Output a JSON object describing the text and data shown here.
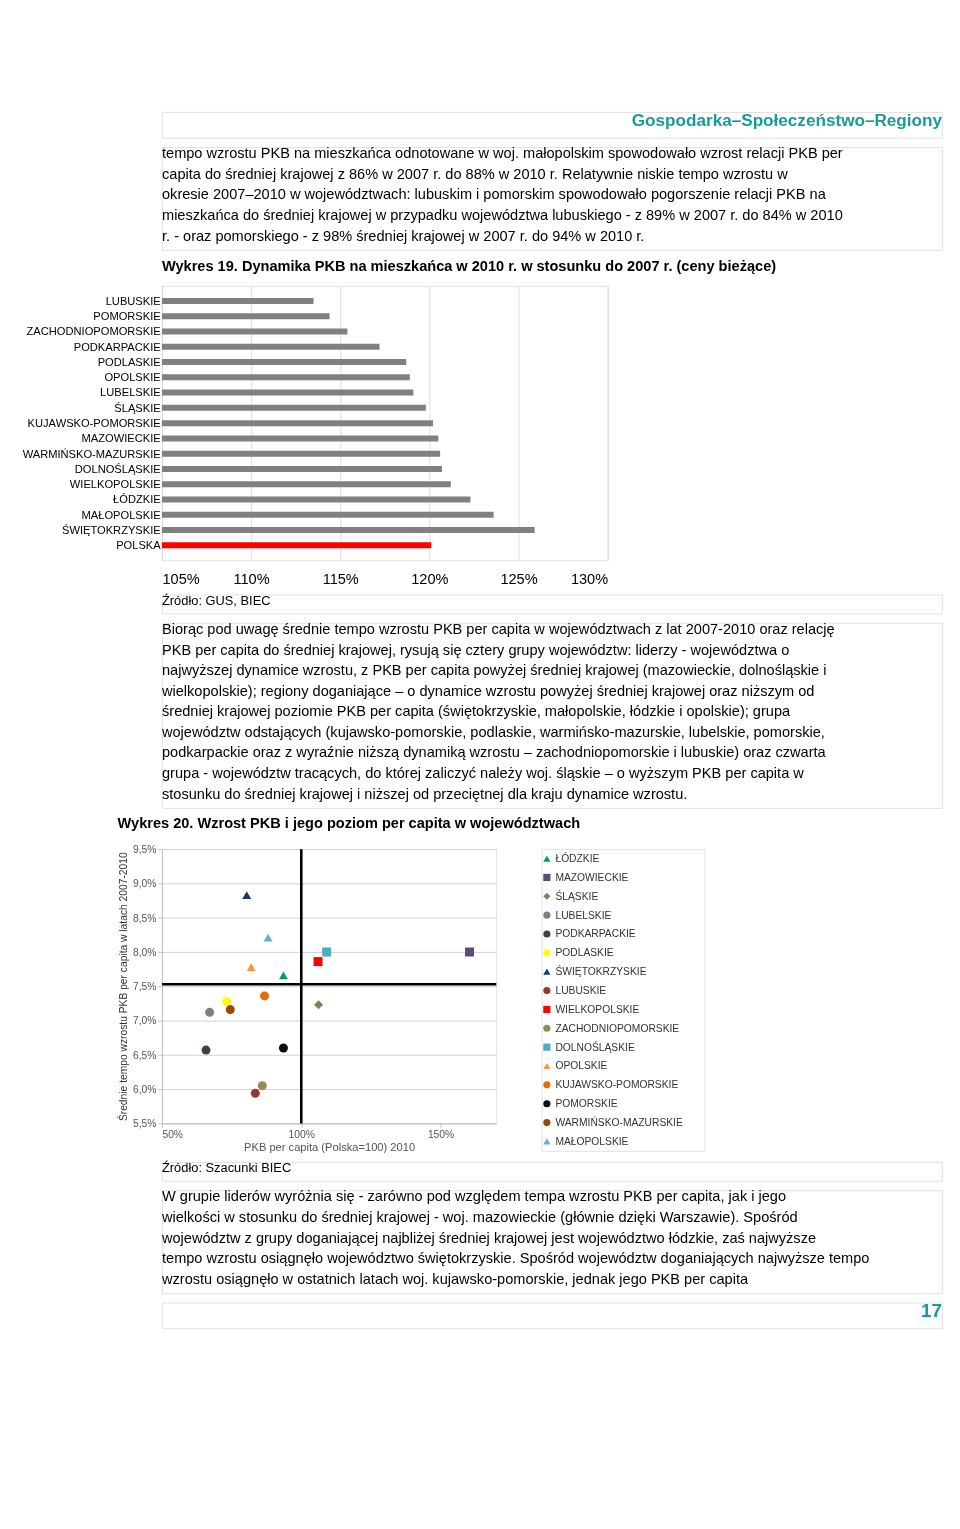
{
  "chart_data": [
    {
      "type": "bar",
      "orientation": "horizontal",
      "title": "Wykres 19.  Dynamika  PKB  na  mieszkańca w 2010 r. w stosunku do 2007 r. (ceny bieżące)",
      "categories": [
        "LUBUSKIE",
        "POMORSKIE",
        "ZACHODNIOPOMORSKIE",
        "PODKARPACKIE",
        "PODLASKIE",
        "OPOLSKIE",
        "LUBELSKIE",
        "ŚLĄSKIE",
        "KUJAWSKO-POMORSKIE",
        "MAZOWIECKIE",
        "WARMIŃSKO-MAZURSKIE",
        "DOLNOŚLĄSKIE",
        "WIELKOPOLSKIE",
        "ŁÓDZKIE",
        "MAŁOPOLSKIE",
        "ŚWIĘTOKRZYSKIE",
        "POLSKA"
      ],
      "values": [
        113.5,
        114.4,
        115.4,
        117.2,
        118.7,
        118.9,
        119.1,
        119.8,
        120.2,
        120.5,
        120.6,
        120.7,
        121.2,
        122.3,
        123.6,
        125.9,
        120.1
      ],
      "colors": [
        "#808080",
        "#808080",
        "#808080",
        "#808080",
        "#808080",
        "#808080",
        "#808080",
        "#808080",
        "#808080",
        "#808080",
        "#808080",
        "#808080",
        "#808080",
        "#808080",
        "#808080",
        "#808080",
        "#ff0000"
      ],
      "xlim": [
        105,
        130
      ],
      "xticks": [
        {
          "value": 105,
          "label": "105%"
        },
        {
          "value": 110,
          "label": "110%"
        },
        {
          "value": 115,
          "label": "115%"
        },
        {
          "value": 120,
          "label": "120%"
        },
        {
          "value": 125,
          "label": "125%"
        },
        {
          "value": 130,
          "label": "130%"
        }
      ],
      "grid": "x",
      "legend": false,
      "annotations": [
        "Gospodarka–Społeczeństwo–Regiony",
        "tempo wzrostu PKB na mieszkańca odnotowane w woj. małopolskim  spowodowało wzrost relacji PKB per capita do średniej krajowej z 86% w 2007 r. do 88% w 2010 r. Relatywnie niskie tempo wzrostu w okresie 2007–2010 w województwach: lubuskim i pomorskim spowodowało  pogorszenie relacji  PKB na mieszkańca do średniej krajowej w przypadku województwa lubuskiego - z 89% w 2007 r. do 84% w 2010 r. - oraz  pomorskiego - z 98% średniej krajowej w 2007 r. do 94% w 2010 r.",
        "Źródło: GUS, BIEC",
        "Biorąc pod uwagę średnie tempo wzrostu PKB per capita w województwach z lat 2007-2010 oraz relację PKB per capita do średniej krajowej, rysują się cztery grupy województw: liderzy - województwa o najwyższej dynamice wzrostu, z PKB per capita powyżej średniej krajowej (mazowieckie, dolnośląskie i wielkopolskie); regiony doganiające – o dynamice wzrostu powyżej średniej krajowej oraz niższym od średniej krajowej poziomie PKB per capita (świętokrzyskie, małopolskie, łódzkie i opolskie); grupa województw odstających (kujawsko-pomorskie, podlaskie, warmińsko-mazurskie, lubelskie, pomorskie, podkarpackie oraz z wyraźnie niższą dynamiką wzrostu – zachodniopomorskie i lubuskie) oraz czwarta grupa - województw tracących, do której zaliczyć należy woj. śląskie – o wyższym PKB per capita w stosunku do średniej krajowej i niższej od przeciętnej dla kraju dynamice wzrostu."
      ]
    },
    {
      "type": "scatter",
      "title": "Wykres 20.  Wzrost PKB i jego poziom per capita w województwach",
      "xlabel": "PKB per capita (Polska=100)  2010",
      "ylabel": "Średnie tempo wzrostu PKB per capita w latach 2007-2010",
      "series": [
        {
          "name": "ŁÓDZKIE",
          "color": "#00a05a",
          "marker": "triangle",
          "x": [
            93.6
          ],
          "values": [
            7.66
          ]
        },
        {
          "name": "MAZOWIECKIE",
          "color": "#604a7b",
          "marker": "square",
          "x": [
            160.4
          ],
          "values": [
            8.0
          ]
        },
        {
          "name": "ŚLĄSKIE",
          "color": "#77855a",
          "marker": "diamond",
          "x": [
            106.2
          ],
          "values": [
            7.23
          ]
        },
        {
          "name": "LUBELSKIE",
          "color": "#7f7f7f",
          "marker": "circle",
          "x": [
            67.1
          ],
          "values": [
            7.12
          ]
        },
        {
          "name": "PODKARPACKIE",
          "color": "#3d4535",
          "marker": "circle",
          "x": [
            65.8
          ],
          "values": [
            6.57
          ]
        },
        {
          "name": "PODLASKIE",
          "color": "#ffff00",
          "marker": "circle",
          "x": [
            73.2
          ],
          "values": [
            7.28
          ]
        },
        {
          "name": "ŚWIĘTOKRZYSKIE",
          "color": "#1f3864",
          "marker": "triangle",
          "x": [
            80.4
          ],
          "values": [
            8.83
          ]
        },
        {
          "name": "LUBUSKIE",
          "color": "#953735",
          "marker": "circle",
          "x": [
            83.5
          ],
          "values": [
            5.94
          ]
        },
        {
          "name": "WIELKOPOLSKIE",
          "color": "#ff0000",
          "marker": "square",
          "x": [
            106.0
          ],
          "values": [
            7.86
          ]
        },
        {
          "name": "ZACHODNIOPOMORSKIE",
          "color": "#948a54",
          "marker": "circle",
          "x": [
            86.0
          ],
          "values": [
            6.05
          ]
        },
        {
          "name": "DOLNOŚLĄSKIE",
          "color": "#4bacc6",
          "marker": "square",
          "x": [
            109.1
          ],
          "values": [
            8.0
          ]
        },
        {
          "name": "OPOLSKIE",
          "color": "#f79646",
          "marker": "triangle",
          "x": [
            82.0
          ],
          "values": [
            7.78
          ]
        },
        {
          "name": "KUJAWSKO-POMORSKIE",
          "color": "#e46c0a",
          "marker": "circle",
          "x": [
            86.8
          ],
          "values": [
            7.36
          ]
        },
        {
          "name": "POMORSKIE",
          "color": "#0d0d0d",
          "marker": "circle",
          "x": [
            93.6
          ],
          "values": [
            6.6
          ]
        },
        {
          "name": "WARMIŃSKO-MAZURSKIE",
          "color": "#984807",
          "marker": "circle",
          "x": [
            74.5
          ],
          "values": [
            7.16
          ]
        },
        {
          "name": "MAŁOPOLSKIE",
          "color": "#5fb4d0",
          "marker": "triangle",
          "x": [
            88.1
          ],
          "values": [
            8.21
          ]
        }
      ],
      "xlim": [
        50,
        170
      ],
      "ylim": [
        5.5,
        9.5
      ],
      "xticks": [
        {
          "value": 50,
          "label": "50%"
        },
        {
          "value": 100,
          "label": "100%"
        },
        {
          "value": 150,
          "label": "150%"
        }
      ],
      "yticks": [
        {
          "value": 5.5,
          "label": "5,5%"
        },
        {
          "value": 6.0,
          "label": "6,0%"
        },
        {
          "value": 6.5,
          "label": "6,5%"
        },
        {
          "value": 7.0,
          "label": "7,0%"
        },
        {
          "value": 7.5,
          "label": "7,5%"
        },
        {
          "value": 8.0,
          "label": "8,0%"
        },
        {
          "value": 8.5,
          "label": "8,5%"
        },
        {
          "value": 9.0,
          "label": "9,0%"
        },
        {
          "value": 9.5,
          "label": "9,5%"
        }
      ],
      "grid": "y",
      "legend": "right",
      "ref_lines": [
        {
          "axis": "x",
          "value": 100,
          "color": "#000000"
        },
        {
          "axis": "y",
          "value": 7.53,
          "color": "#000000"
        }
      ],
      "annotations": [
        "Źródło: Szacunki BIEC",
        "W grupie liderów wyróżnia się - zarówno pod względem tempa wzrostu PKB per capita, jak i jego wielkości w stosunku do średniej krajowej - woj. mazowieckie (głównie dzięki Warszawie). Spośród województw z grupy doganiającej najbliżej średniej krajowej jest województwo łódzkie, zaś najwyższe tempo wzrostu osiągnęło województwo świętokrzyskie. Spośród województw doganiających najwyższe tempo wzrostu osiągnęło w ostatnich latach woj. kujawsko-pomorskie, jednak jego PKB per capita",
        "17"
      ]
    }
  ]
}
